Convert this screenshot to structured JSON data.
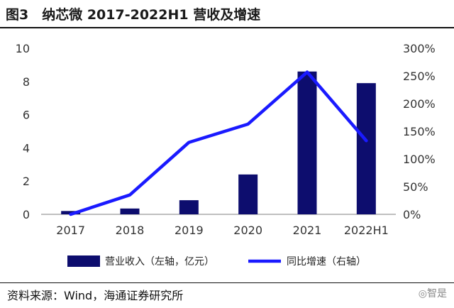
{
  "header": {
    "title": "图3　纳芯微 2017-2022H1 营收及增速"
  },
  "footer": {
    "source": "资料来源：Wind，海通证券研究所",
    "watermark": "◎智是"
  },
  "colors": {
    "bar": "#0d0d6e",
    "line": "#1a1aff",
    "axis": "#999999"
  },
  "chart_data": {
    "type": "bar",
    "title": "纳芯微 2017-2022H1 营收及增速",
    "categories": [
      "2017",
      "2018",
      "2019",
      "2020",
      "2021",
      "2022H1"
    ],
    "series": [
      {
        "name": "营业收入（左轴，亿元）",
        "type": "bar",
        "axis": "left",
        "values": [
          0.2,
          0.35,
          0.85,
          2.4,
          8.6,
          7.9
        ]
      },
      {
        "name": "同比增速（右轴）",
        "type": "line",
        "axis": "right",
        "values": [
          0,
          35,
          130,
          163,
          257,
          133
        ]
      }
    ],
    "y_left": {
      "range": [
        0,
        10
      ],
      "ticks": [
        "0",
        "2",
        "4",
        "6",
        "8",
        "10"
      ]
    },
    "y_right": {
      "range": [
        0,
        300
      ],
      "ticks": [
        "0%",
        "50%",
        "100%",
        "150%",
        "200%",
        "250%",
        "300%"
      ]
    },
    "legend": "bottom",
    "grid": false
  }
}
